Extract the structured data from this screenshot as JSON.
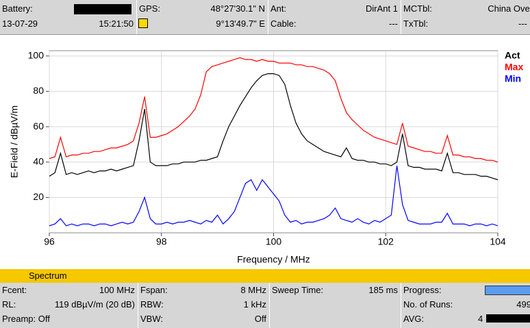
{
  "header": {
    "battery_label": "Battery:",
    "date": "13-07-29",
    "time": "15:21:50",
    "gps_label": "GPS:",
    "lat": "48°27'30.1\" N",
    "lon": "9°13'49.7\" E",
    "ant_label": "Ant:",
    "ant": "DirAnt 1",
    "cable_label": "Cable:",
    "cable": "---",
    "mctbl_label": "MCTbl:",
    "mctbl": "China Over",
    "txtbl_label": "TxTbl:",
    "txtbl": "---"
  },
  "chart_data": {
    "type": "line",
    "xlabel": "Frequency / MHz",
    "ylabel": "E-Field / dBµV/m",
    "xlim": [
      96,
      104
    ],
    "ylim": [
      0,
      103
    ],
    "xticks": [
      96,
      98,
      100,
      102,
      104
    ],
    "yticks": [
      20,
      40,
      60,
      80,
      100
    ],
    "grid": true,
    "legend": "right",
    "x": [
      96.0,
      96.1,
      96.2,
      96.3,
      96.4,
      96.5,
      96.6,
      96.7,
      96.8,
      96.9,
      97.0,
      97.1,
      97.2,
      97.3,
      97.4,
      97.5,
      97.6,
      97.7,
      97.8,
      97.9,
      98.0,
      98.1,
      98.2,
      98.3,
      98.4,
      98.5,
      98.6,
      98.7,
      98.8,
      98.9,
      99.0,
      99.1,
      99.2,
      99.3,
      99.4,
      99.5,
      99.6,
      99.7,
      99.8,
      99.9,
      100.0,
      100.1,
      100.2,
      100.3,
      100.4,
      100.5,
      100.6,
      100.7,
      100.8,
      100.9,
      101.0,
      101.1,
      101.2,
      101.3,
      101.4,
      101.5,
      101.6,
      101.7,
      101.8,
      101.9,
      102.0,
      102.1,
      102.2,
      102.3,
      102.4,
      102.5,
      102.6,
      102.7,
      102.8,
      102.9,
      103.0,
      103.1,
      103.2,
      103.3,
      103.4,
      103.5,
      103.6,
      103.7,
      103.8,
      103.9,
      104.0
    ],
    "series": [
      {
        "name": "Act",
        "color": "#000000",
        "values": [
          32,
          34,
          45,
          33,
          34,
          33,
          34,
          35,
          34,
          35,
          35,
          36,
          35,
          36,
          37,
          38,
          52,
          70,
          40,
          38,
          38,
          38,
          39,
          39,
          40,
          40,
          40,
          41,
          41,
          42,
          43,
          52,
          60,
          66,
          72,
          77,
          82,
          86,
          89,
          90,
          90,
          89,
          84,
          72,
          62,
          56,
          52,
          50,
          48,
          46,
          45,
          44,
          43,
          48,
          42,
          41,
          41,
          40,
          40,
          39,
          39,
          38,
          40,
          56,
          38,
          37,
          37,
          36,
          36,
          36,
          35,
          45,
          34,
          34,
          33,
          33,
          33,
          32,
          32,
          31,
          30
        ]
      },
      {
        "name": "Max",
        "color": "#ff0000",
        "values": [
          42,
          43,
          54,
          43,
          44,
          44,
          45,
          45,
          46,
          46,
          47,
          48,
          48,
          49,
          50,
          52,
          62,
          77,
          54,
          54,
          55,
          56,
          58,
          60,
          63,
          66,
          70,
          78,
          91,
          94,
          95,
          96,
          97,
          98,
          99,
          98,
          98,
          97,
          98,
          97,
          97,
          96,
          96,
          96,
          95,
          95,
          94,
          94,
          93,
          92,
          90,
          86,
          76,
          68,
          64,
          61,
          58,
          56,
          54,
          53,
          52,
          51,
          50,
          62,
          49,
          48,
          47,
          46,
          46,
          45,
          45,
          55,
          44,
          44,
          43,
          43,
          42,
          42,
          41,
          41,
          40
        ]
      },
      {
        "name": "Min",
        "color": "#0000ff",
        "values": [
          4,
          5,
          8,
          4,
          5,
          4,
          5,
          5,
          4,
          5,
          5,
          4,
          5,
          6,
          5,
          6,
          12,
          20,
          8,
          5,
          5,
          6,
          5,
          6,
          6,
          7,
          6,
          5,
          7,
          6,
          10,
          5,
          8,
          12,
          20,
          28,
          30,
          24,
          30,
          26,
          22,
          18,
          10,
          6,
          7,
          5,
          6,
          6,
          7,
          8,
          10,
          14,
          8,
          7,
          6,
          8,
          6,
          5,
          7,
          6,
          8,
          10,
          38,
          16,
          7,
          6,
          5,
          5,
          5,
          6,
          6,
          11,
          5,
          5,
          5,
          4,
          5,
          5,
          4,
          5,
          4
        ]
      }
    ]
  },
  "footer": {
    "tab": "Spectrum",
    "fcent_label": "Fcent:",
    "fcent": "100 MHz",
    "fspan_label": "Fspan:",
    "fspan": "8 MHz",
    "sweep_label": "Sweep Time:",
    "sweep": "185 ms",
    "progress_label": "Progress:",
    "rl_label": "RL:",
    "rl": "119 dBµV/m (20 dB)",
    "rbw_label": "RBW:",
    "rbw": "1 kHz",
    "runs_label": "No. of Runs:",
    "runs": "499",
    "preamp": "Preamp: Off",
    "vbw_label": "VBW:",
    "vbw": "Off",
    "avg_label": "AVG:",
    "avg": "4"
  }
}
